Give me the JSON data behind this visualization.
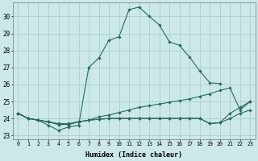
{
  "xlabel": "Humidex (Indice chaleur)",
  "xlim": [
    -0.5,
    23.5
  ],
  "ylim": [
    22.8,
    30.8
  ],
  "xticks": [
    0,
    1,
    2,
    3,
    4,
    5,
    6,
    7,
    8,
    9,
    10,
    11,
    12,
    13,
    14,
    15,
    16,
    17,
    18,
    19,
    20,
    21,
    22,
    23
  ],
  "yticks": [
    23,
    24,
    25,
    26,
    27,
    28,
    29,
    30
  ],
  "bg_color": "#cce8e8",
  "grid_color": "#aacece",
  "line_color": "#2a6b5a",
  "series": [
    {
      "x": [
        0,
        1,
        2,
        3,
        4,
        5,
        6,
        7,
        8,
        9,
        10,
        11,
        12,
        13,
        14,
        15,
        16,
        17,
        18,
        19,
        20
      ],
      "y": [
        24.3,
        24.0,
        23.9,
        23.6,
        23.3,
        23.5,
        23.6,
        27.0,
        27.55,
        28.6,
        28.8,
        30.4,
        30.55,
        30.0,
        29.5,
        28.5,
        28.3,
        27.6,
        26.8,
        26.1,
        26.05
      ]
    },
    {
      "x": [
        0,
        1,
        2,
        3,
        4,
        5,
        6,
        7,
        8,
        9,
        10,
        11,
        12,
        13,
        14,
        15,
        16,
        17,
        18,
        19,
        20,
        21,
        22,
        23
      ],
      "y": [
        24.3,
        24.0,
        23.9,
        23.8,
        23.7,
        23.7,
        23.8,
        23.9,
        24.1,
        24.2,
        24.35,
        24.5,
        24.65,
        24.75,
        24.85,
        24.95,
        25.05,
        25.15,
        25.3,
        25.45,
        25.65,
        25.8,
        24.5,
        25.0
      ]
    },
    {
      "x": [
        0,
        1,
        2,
        3,
        4,
        5,
        6,
        7,
        8,
        9,
        10,
        11,
        12,
        13,
        14,
        15,
        16,
        17,
        18,
        19,
        20,
        21,
        22,
        23
      ],
      "y": [
        24.3,
        24.0,
        23.9,
        23.8,
        23.65,
        23.65,
        23.8,
        23.9,
        23.95,
        24.0,
        24.0,
        24.0,
        24.0,
        24.0,
        24.0,
        24.0,
        24.0,
        24.0,
        24.0,
        23.7,
        23.75,
        24.3,
        24.65,
        25.0
      ]
    },
    {
      "x": [
        0,
        1,
        2,
        3,
        4,
        5,
        6,
        7,
        8,
        9,
        10,
        11,
        12,
        13,
        14,
        15,
        16,
        17,
        18,
        19,
        20,
        21,
        22,
        23
      ],
      "y": [
        24.3,
        24.0,
        23.9,
        23.8,
        23.65,
        23.65,
        23.8,
        23.9,
        23.95,
        24.0,
        24.0,
        24.0,
        24.0,
        24.0,
        24.0,
        24.0,
        24.0,
        24.0,
        24.0,
        23.7,
        23.75,
        24.0,
        24.3,
        24.5
      ]
    }
  ]
}
